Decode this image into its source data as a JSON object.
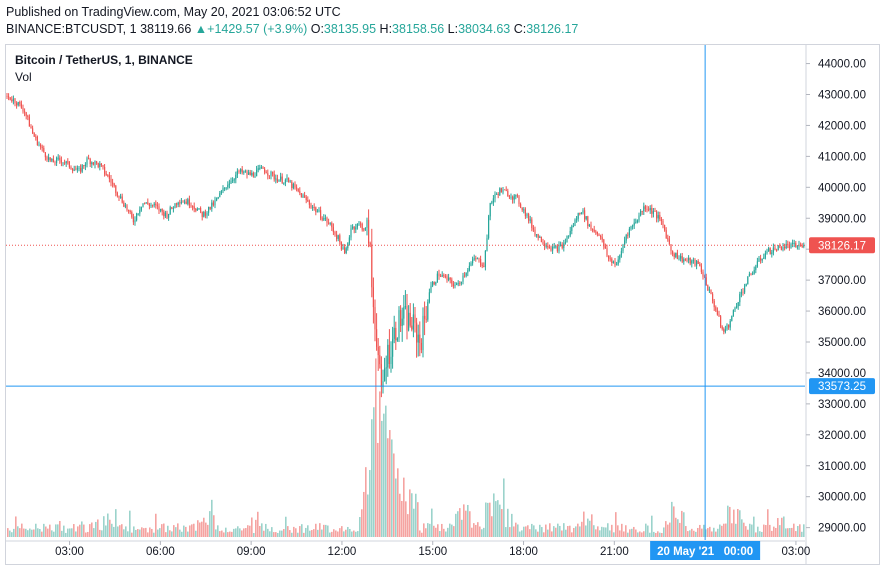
{
  "header": {
    "published": "Published on TradingView.com, May 20, 2021 03:06:52 UTC",
    "symbol": "BINANCE:BTCUSDT, 1",
    "last": "38119.66",
    "change_arrow": "▲",
    "change": "+1429.57 (+3.9%)",
    "o_label": "O:",
    "o_val": "38135.95",
    "h_label": "H:",
    "h_val": "38158.56",
    "l_label": "L:",
    "l_val": "38034.63",
    "c_label": "C:",
    "c_val": "38126.17"
  },
  "legend": {
    "title": "Bitcoin / TetherUS, 1, BINANCE",
    "vol": "Vol"
  },
  "colors": {
    "up": "#26a69a",
    "down": "#ef5350",
    "crosshair": "#2196f3",
    "last_price": "#ef5350"
  },
  "chart_data": {
    "type": "candlestick",
    "title": "Bitcoin / TetherUS, 1, BINANCE",
    "interval": "1 minute",
    "ylim": [
      28600,
      44600
    ],
    "y_ticks": [
      "44000.00",
      "43000.00",
      "42000.00",
      "41000.00",
      "40000.00",
      "39000.00",
      "38000.00",
      "37000.00",
      "36000.00",
      "35000.00",
      "34000.00",
      "33000.00",
      "32000.00",
      "31000.00",
      "30000.00",
      "29000.00"
    ],
    "x_ticks": [
      "03:00",
      "06:00",
      "09:00",
      "12:00",
      "15:00",
      "18:00",
      "21:00",
      "00:00",
      "03:00"
    ],
    "x_tick_hours": [
      3,
      6,
      9,
      12,
      15,
      18,
      21,
      24,
      27
    ],
    "x_range_hours": [
      0.9,
      27.3
    ],
    "last_price_label": "38126.17",
    "last_price": 38126.17,
    "crosshair_price_label": "33573.25",
    "crosshair_price": 33573.25,
    "crosshair_time_label": "20 May '21   00:00",
    "crosshair_hour": 24,
    "price_path": [
      [
        0.9,
        42950
      ],
      [
        1.2,
        42800
      ],
      [
        1.5,
        42500
      ],
      [
        1.8,
        41700
      ],
      [
        2.1,
        41200
      ],
      [
        2.4,
        40800
      ],
      [
        2.7,
        40900
      ],
      [
        3.0,
        40700
      ],
      [
        3.3,
        40500
      ],
      [
        3.6,
        40900
      ],
      [
        4.0,
        40700
      ],
      [
        4.3,
        40300
      ],
      [
        4.6,
        39800
      ],
      [
        4.9,
        39300
      ],
      [
        5.1,
        38900
      ],
      [
        5.4,
        39500
      ],
      [
        5.8,
        39400
      ],
      [
        6.2,
        39100
      ],
      [
        6.6,
        39600
      ],
      [
        7.0,
        39500
      ],
      [
        7.4,
        39100
      ],
      [
        7.8,
        39500
      ],
      [
        8.2,
        40100
      ],
      [
        8.6,
        40500
      ],
      [
        9.0,
        40400
      ],
      [
        9.4,
        40600
      ],
      [
        9.8,
        40300
      ],
      [
        10.2,
        40200
      ],
      [
        10.6,
        39800
      ],
      [
        10.9,
        39500
      ],
      [
        11.2,
        39200
      ],
      [
        11.6,
        38800
      ],
      [
        11.9,
        38300
      ],
      [
        12.1,
        37800
      ],
      [
        12.3,
        38700
      ],
      [
        12.6,
        38800
      ],
      [
        12.9,
        38500
      ],
      [
        13.0,
        36500
      ],
      [
        13.15,
        35200
      ],
      [
        13.3,
        33200
      ],
      [
        13.45,
        34500
      ],
      [
        13.6,
        34800
      ],
      [
        13.8,
        35500
      ],
      [
        14.0,
        35800
      ],
      [
        14.3,
        35600
      ],
      [
        14.6,
        35000
      ],
      [
        14.9,
        36700
      ],
      [
        15.2,
        37200
      ],
      [
        15.5,
        37000
      ],
      [
        15.8,
        36800
      ],
      [
        16.1,
        37300
      ],
      [
        16.4,
        37700
      ],
      [
        16.7,
        37500
      ],
      [
        16.9,
        39500
      ],
      [
        17.2,
        39900
      ],
      [
        17.5,
        39800
      ],
      [
        17.8,
        39600
      ],
      [
        18.1,
        39100
      ],
      [
        18.4,
        38500
      ],
      [
        18.7,
        38200
      ],
      [
        19.0,
        38000
      ],
      [
        19.3,
        38100
      ],
      [
        19.6,
        38700
      ],
      [
        19.9,
        39300
      ],
      [
        20.2,
        38700
      ],
      [
        20.5,
        38500
      ],
      [
        20.8,
        37700
      ],
      [
        21.1,
        37500
      ],
      [
        21.4,
        38500
      ],
      [
        21.7,
        38900
      ],
      [
        22.0,
        39400
      ],
      [
        22.3,
        39200
      ],
      [
        22.6,
        38800
      ],
      [
        22.9,
        37900
      ],
      [
        23.2,
        37700
      ],
      [
        23.5,
        37600
      ],
      [
        23.8,
        37500
      ],
      [
        24.0,
        37000
      ],
      [
        24.3,
        36200
      ],
      [
        24.6,
        35300
      ],
      [
        24.8,
        35600
      ],
      [
        25.1,
        36400
      ],
      [
        25.4,
        37000
      ],
      [
        25.7,
        37500
      ],
      [
        26.0,
        37900
      ],
      [
        26.3,
        38000
      ],
      [
        26.6,
        38100
      ]
    ],
    "volume_spikes": [
      [
        12.95,
        6.5
      ],
      [
        13.1,
        7.0
      ],
      [
        13.3,
        9.0
      ],
      [
        13.5,
        5.0
      ],
      [
        16.9,
        4.0
      ],
      [
        17.3,
        3.5
      ],
      [
        24.9,
        3.0
      ],
      [
        4.0,
        2.5
      ],
      [
        7.5,
        2.0
      ],
      [
        16.0,
        2.5
      ],
      [
        20.0,
        2.0
      ],
      [
        23.0,
        2.0
      ]
    ]
  }
}
